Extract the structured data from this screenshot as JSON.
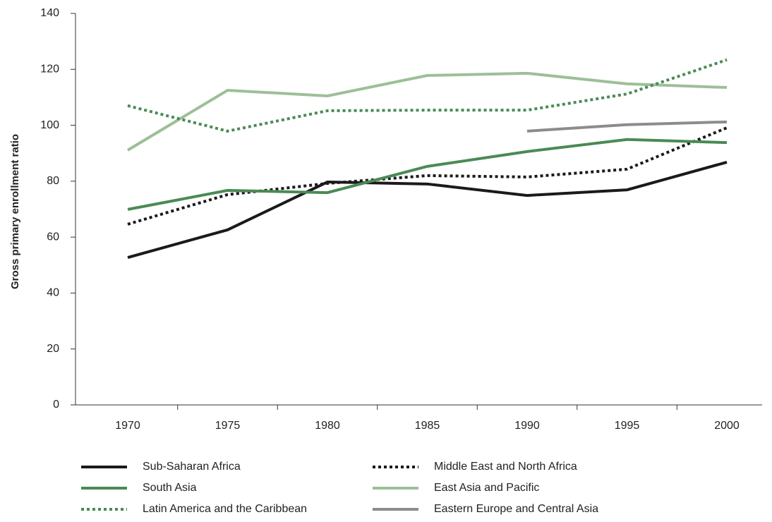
{
  "chart_data": {
    "type": "line",
    "y_label": "Gross primary enrollment ratio",
    "categories": [
      "1970",
      "1975",
      "1980",
      "1985",
      "1990",
      "1995",
      "2000"
    ],
    "ylim": [
      0,
      140
    ],
    "yticks": [
      0,
      20,
      40,
      60,
      80,
      100,
      120,
      140
    ],
    "series": [
      {
        "name": "Sub-Saharan Africa",
        "color": "#1a1a1a",
        "line_style": "solid",
        "values": [
          52.7,
          62.6,
          79.7,
          79,
          74.9,
          76.9,
          86.8
        ]
      },
      {
        "name": "Middle East and North Africa",
        "color": "#1a1a1a",
        "line_style": "dotted",
        "values": [
          64.6,
          75.2,
          79.2,
          82,
          81.5,
          84.3,
          99.1
        ]
      },
      {
        "name": "South Asia",
        "color": "#4a8a55",
        "line_style": "solid",
        "values": [
          69.9,
          76.7,
          75.9,
          85.3,
          90.6,
          94.9,
          93.8
        ]
      },
      {
        "name": "East Asia and Pacific",
        "color": "#9dbf98",
        "line_style": "solid",
        "values": [
          91.1,
          112.5,
          110.5,
          117.8,
          118.6,
          114.8,
          113.5
        ]
      },
      {
        "name": "Latin America and the Caribbean",
        "color": "#4a8a55",
        "line_style": "dotted",
        "values": [
          107,
          97.9,
          105.2,
          105.4,
          105.4,
          111.2,
          123.4
        ]
      },
      {
        "name": "Eastern Europe and Central Asia",
        "color": "#8c8c8c",
        "line_style": "solid",
        "values": [
          null,
          null,
          null,
          null,
          97.9,
          100.2,
          101.2
        ]
      }
    ]
  }
}
